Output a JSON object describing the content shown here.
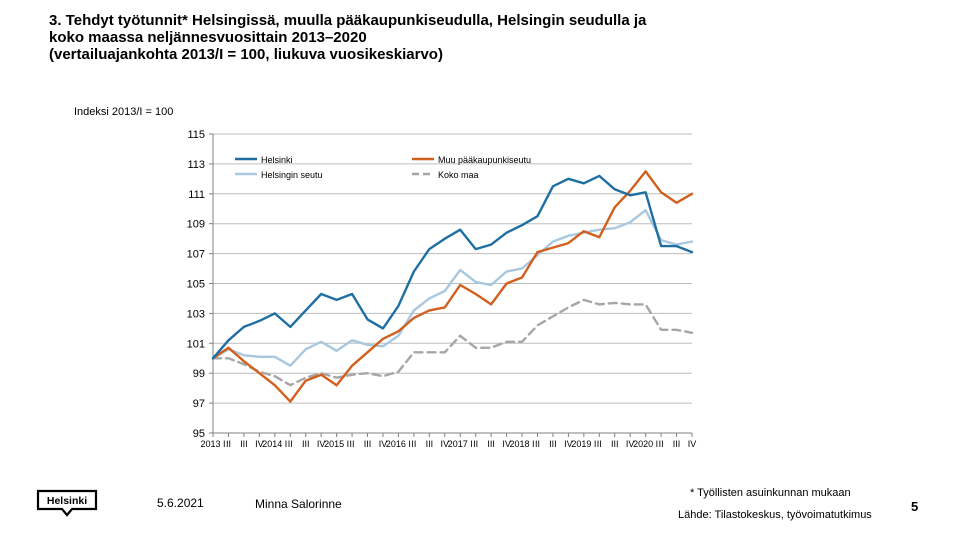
{
  "slide": {
    "title_lines": [
      "3. Tehdyt työtunnit* Helsingissä, muulla pääkaupunkiseudulla, Helsingin seudulla ja",
      "koko maassa neljännesvuosittain 2013–2020",
      "(vertailuajankohta 2013/I = 100, liukuva vuosikeskiarvo)"
    ],
    "date": "5.6.2021",
    "author": "Minna Salorinne",
    "footnote": "* Työllisten asuinkunnan mukaan",
    "source": "Lähde: Tilastokeskus, työvoimatutkimus",
    "page_number": "5",
    "logo_text": "Helsinki"
  },
  "chart_data": {
    "type": "line",
    "title": "",
    "ylabel": "Indeksi 2013/I = 100",
    "xlabel": "",
    "ylim": [
      95,
      115
    ],
    "yticks": [
      95,
      97,
      99,
      101,
      103,
      105,
      107,
      109,
      111,
      113,
      115
    ],
    "grid": true,
    "legend_position": "top",
    "x": [
      "2013 I",
      "II",
      "III",
      "IV",
      "2014 I",
      "II",
      "III",
      "IV",
      "2015 I",
      "II",
      "III",
      "IV",
      "2016 I",
      "II",
      "III",
      "IV",
      "2017 I",
      "II",
      "III",
      "IV",
      "2018 I",
      "II",
      "III",
      "IV",
      "2019 I",
      "II",
      "III",
      "IV",
      "2020 I",
      "II",
      "III",
      "IV"
    ],
    "x_tick_labels": [
      "2013 I",
      "II",
      "III",
      "IV",
      "2014 I",
      "II",
      "III",
      "IV",
      "2015 I",
      "II",
      "III",
      "IV",
      "2016 I",
      "II",
      "III",
      "IV",
      "2017 I",
      "II",
      "III",
      "IV",
      "2018 I",
      "II",
      "III",
      "IV",
      "2019 I",
      "II",
      "III",
      "IV",
      "2020 I",
      "II",
      "III",
      "IV"
    ],
    "series": [
      {
        "name": "Helsinki",
        "color": "#1f6fa3",
        "dash": "solid",
        "values": [
          100.0,
          101.2,
          102.1,
          102.5,
          103.0,
          102.1,
          103.2,
          104.3,
          103.9,
          104.3,
          102.6,
          102.0,
          103.5,
          105.8,
          107.3,
          108.0,
          108.6,
          107.3,
          107.6,
          108.4,
          108.9,
          109.5,
          111.5,
          112.0,
          111.7,
          112.2,
          111.3,
          110.9,
          111.1,
          107.5,
          107.5,
          107.1
        ]
      },
      {
        "name": "Muu pääkaupunkiseutu",
        "color": "#d35f1d",
        "dash": "solid",
        "values": [
          100.0,
          100.7,
          99.8,
          99.0,
          98.2,
          97.1,
          98.5,
          98.9,
          98.2,
          99.5,
          100.4,
          101.3,
          101.8,
          102.7,
          103.2,
          103.4,
          104.9,
          104.3,
          103.6,
          105.0,
          105.4,
          107.1,
          107.4,
          107.7,
          108.5,
          108.1,
          110.1,
          111.2,
          112.5,
          111.1,
          110.4,
          111.0
        ]
      },
      {
        "name": "Helsingin seutu",
        "color": "#a8c8e0",
        "dash": "solid",
        "values": [
          100.0,
          100.6,
          100.2,
          100.1,
          100.1,
          99.5,
          100.6,
          101.1,
          100.5,
          101.2,
          100.9,
          100.8,
          101.5,
          103.2,
          104.0,
          104.5,
          105.9,
          105.1,
          104.9,
          105.8,
          106.0,
          106.9,
          107.8,
          108.2,
          108.4,
          108.6,
          108.7,
          109.1,
          109.9,
          107.9,
          107.6,
          107.8
        ]
      },
      {
        "name": "Koko maa",
        "color": "#a6a6a6",
        "dash": "dashed",
        "values": [
          100.0,
          100.0,
          99.6,
          99.1,
          98.8,
          98.2,
          98.7,
          99.0,
          98.7,
          98.9,
          99.0,
          98.8,
          99.1,
          100.4,
          100.4,
          100.4,
          101.5,
          100.7,
          100.7,
          101.1,
          101.1,
          102.2,
          102.8,
          103.4,
          103.9,
          103.6,
          103.7,
          103.6,
          103.6,
          101.9,
          101.9,
          101.7
        ]
      }
    ]
  }
}
